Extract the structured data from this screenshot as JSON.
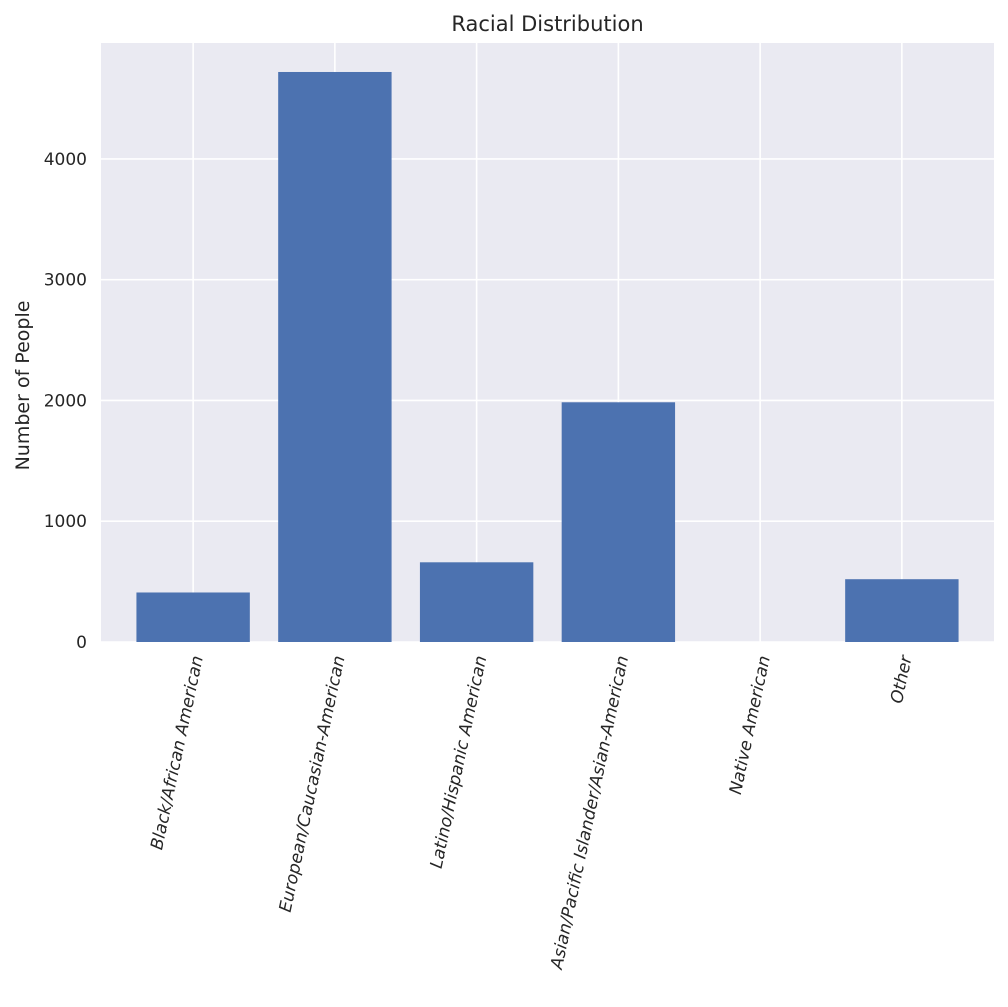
{
  "chart_data": {
    "type": "bar",
    "title": "Racial Distribution",
    "xlabel": "",
    "ylabel": "Number of People",
    "categories": [
      "Black/African American",
      "European/Caucasian-American",
      "Latino/Hispanic American",
      "Asian/Pacific Islander/Asian-American",
      "Native American",
      "Other"
    ],
    "values": [
      410,
      4720,
      660,
      1985,
      0,
      520
    ],
    "yticks": [
      0,
      1000,
      2000,
      3000,
      4000
    ],
    "ylim": [
      0,
      4960
    ],
    "grid": true,
    "legend": "none",
    "colors": {
      "bar": "#4c72b0",
      "plot_background": "#eaeaf2",
      "grid": "#ffffff",
      "text": "#262626"
    }
  }
}
